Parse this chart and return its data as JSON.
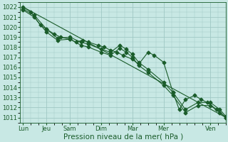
{
  "title": "",
  "xlabel": "Pression niveau de la mer( hPa )",
  "ylabel": "",
  "bg_color": "#c8e8e4",
  "grid_color": "#a0c8c4",
  "line_color": "#1a5c2a",
  "ylim": [
    1010.5,
    1022.5
  ],
  "yticks": [
    1011,
    1012,
    1013,
    1014,
    1015,
    1016,
    1017,
    1018,
    1019,
    1020,
    1021,
    1022
  ],
  "xtick_labels": [
    "Lun",
    "Jeu",
    "Sam",
    "Dim",
    "Mar",
    "Mer",
    "Ven"
  ],
  "xtick_positions": [
    0,
    0.75,
    1.5,
    2.5,
    3.5,
    4.5,
    6.0
  ],
  "xlim": [
    -0.1,
    6.5
  ],
  "trend_x": [
    0,
    6.5
  ],
  "trend_y": [
    1022.0,
    1011.0
  ],
  "series1_x": [
    0.0,
    0.35,
    0.75,
    1.1,
    1.5,
    1.85,
    2.1,
    2.5,
    2.8,
    3.1,
    3.3,
    3.5,
    3.7,
    4.0,
    4.5,
    4.8,
    5.2,
    5.6,
    6.0,
    6.3,
    6.5
  ],
  "series1_y": [
    1021.8,
    1021.2,
    1019.8,
    1018.9,
    1019.0,
    1018.5,
    1018.3,
    1017.8,
    1017.5,
    1018.2,
    1017.8,
    1017.3,
    1016.5,
    1015.8,
    1014.5,
    1013.5,
    1011.8,
    1012.5,
    1012.5,
    1011.8,
    1011.1
  ],
  "series2_x": [
    0.0,
    0.35,
    0.75,
    1.1,
    1.5,
    1.85,
    2.1,
    2.5,
    2.8,
    3.1,
    3.3,
    3.5,
    3.7,
    4.0,
    4.5,
    4.8,
    5.2,
    5.6,
    6.0,
    6.3,
    6.5
  ],
  "series2_y": [
    1021.7,
    1021.0,
    1019.5,
    1018.7,
    1018.8,
    1018.2,
    1018.0,
    1017.5,
    1017.2,
    1017.9,
    1017.5,
    1017.0,
    1016.2,
    1015.5,
    1014.2,
    1013.2,
    1011.5,
    1012.2,
    1012.2,
    1011.5,
    1011.0
  ],
  "main_x": [
    0.0,
    0.25,
    0.55,
    0.75,
    1.0,
    1.2,
    1.5,
    1.7,
    1.9,
    2.1,
    2.4,
    2.6,
    2.8,
    3.0,
    3.2,
    3.5,
    3.7,
    4.0,
    4.2,
    4.5,
    4.8,
    5.0,
    5.2,
    5.5,
    5.7,
    5.9,
    6.2,
    6.5
  ],
  "main_y": [
    1022.0,
    1021.5,
    1020.2,
    1019.8,
    1019.3,
    1019.0,
    1018.8,
    1018.5,
    1018.7,
    1018.5,
    1018.2,
    1018.0,
    1017.7,
    1017.5,
    1017.2,
    1016.8,
    1016.3,
    1017.5,
    1017.2,
    1016.5,
    1013.5,
    1011.8,
    1012.8,
    1013.2,
    1012.8,
    1012.5,
    1011.8,
    1011.0
  ],
  "marker": "D",
  "markersize": 2.5,
  "linewidth": 0.8,
  "xlabel_fontsize": 7.5,
  "tick_fontsize": 6.0
}
